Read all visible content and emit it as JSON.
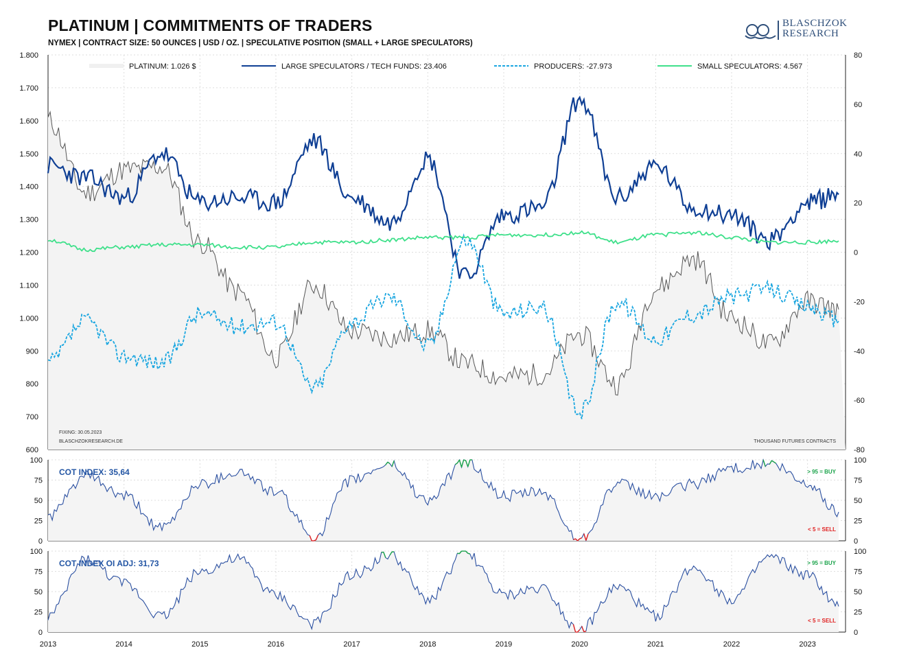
{
  "header": {
    "title": "PLATINUM | COMMITMENTS OF TRADERS",
    "subtitle": "NYMEX  |  CONTRACT SIZE: 50 OUNCES  |  USD / OZ.  |  SPECULATIVE  POSITION (SMALL + LARGE SPECULATORS)",
    "logo_line1": "BLASCHZOK",
    "logo_line2": "RESEARCH"
  },
  "colors": {
    "platinum": "#555555",
    "large_specs": "#0f3f94",
    "producers": "#1aa6e0",
    "small_specs": "#3ee08a",
    "cot_line": "#2a4fa0",
    "buy": "#1aa34a",
    "sell": "#e02020",
    "grid": "#dddddd"
  },
  "chart_data": [
    {
      "type": "line",
      "title": "PLATINUM | COMMITMENTS OF TRADERS",
      "x_ticks": [
        "2013",
        "2014",
        "2015",
        "2016",
        "2017",
        "2018",
        "2019",
        "2020",
        "2021",
        "2022",
        "2023"
      ],
      "left_axis_ticks": [
        "1.800",
        "1.700",
        "1.600",
        "1.500",
        "1.400",
        "1.300",
        "1.200",
        "1.100",
        "1.000",
        "900",
        "800",
        "700",
        "600"
      ],
      "ylim_left": [
        600,
        1800
      ],
      "right_axis_ticks": [
        "80",
        "60",
        "40",
        "20",
        "0",
        "-20",
        "-40",
        "-60",
        "-80"
      ],
      "ylim_right": [
        -80,
        80
      ],
      "right_axis_label": "THOUSAND  FUTURES  CONTRACTS",
      "notes": [
        "FIXING: 30.05.2023",
        "BLASCHZOKRESEARCH.DE"
      ],
      "legend": [
        "PLATINUM: 1.026 $",
        "LARGE SPECULATORS / TECH FUNDS: 23.406",
        "PRODUCERS: -27.973",
        "SMALL SPECULATORS: 4.567"
      ],
      "x": [
        2013.0,
        2013.5,
        2014.0,
        2014.5,
        2015.0,
        2015.5,
        2016.0,
        2016.5,
        2017.0,
        2017.5,
        2018.0,
        2018.5,
        2019.0,
        2019.5,
        2020.0,
        2020.5,
        2021.0,
        2021.5,
        2022.0,
        2022.5,
        2023.0,
        2023.41
      ],
      "series": [
        {
          "name": "PLATINUM",
          "axis": "left",
          "values": [
            1600,
            1380,
            1450,
            1460,
            1230,
            1080,
            880,
            1100,
            960,
            940,
            960,
            860,
            820,
            830,
            950,
            800,
            1090,
            1180,
            1000,
            920,
            1050,
            1026
          ]
        },
        {
          "name": "LARGE SPECULATORS / TECH FUNDS",
          "axis": "right",
          "values": [
            35,
            30,
            22,
            40,
            20,
            22,
            20,
            45,
            22,
            12,
            38,
            -10,
            15,
            18,
            62,
            22,
            35,
            18,
            15,
            5,
            20,
            23.4
          ]
        },
        {
          "name": "PRODUCERS",
          "axis": "right",
          "values": [
            -45,
            -28,
            -42,
            -45,
            -25,
            -30,
            -28,
            -55,
            -28,
            -18,
            -38,
            5,
            -25,
            -22,
            -65,
            -20,
            -35,
            -25,
            -18,
            -15,
            -22,
            -28
          ]
        },
        {
          "name": "SMALL SPECULATORS",
          "axis": "right",
          "values": [
            5,
            1,
            2,
            3,
            3,
            2,
            2,
            4,
            4,
            5,
            6,
            6,
            7,
            7,
            8,
            4,
            7,
            8,
            6,
            4,
            4,
            4.6
          ]
        }
      ]
    },
    {
      "type": "line",
      "label": "COT INDEX: 35,64",
      "ylim": [
        0,
        100
      ],
      "y_ticks": [
        "100",
        "75",
        "50",
        "25",
        "0"
      ],
      "upper_threshold_label": "> 95 = BUY",
      "lower_threshold_label": "< 5 = SELL",
      "x": [
        2013.0,
        2013.5,
        2014.0,
        2014.5,
        2015.0,
        2015.5,
        2016.0,
        2016.5,
        2017.0,
        2017.5,
        2018.0,
        2018.5,
        2019.0,
        2019.5,
        2020.0,
        2020.5,
        2021.0,
        2021.5,
        2022.0,
        2022.5,
        2023.0,
        2023.41
      ],
      "values": [
        30,
        80,
        55,
        15,
        70,
        85,
        60,
        5,
        75,
        95,
        50,
        98,
        55,
        60,
        2,
        70,
        55,
        70,
        90,
        95,
        70,
        35.64
      ]
    },
    {
      "type": "line",
      "label": "COT INDEX OI ADJ: 31,73",
      "ylim": [
        0,
        100
      ],
      "y_ticks": [
        "100",
        "75",
        "50",
        "25",
        "0"
      ],
      "upper_threshold_label": "> 95 = BUY",
      "lower_threshold_label": "< 5 = SELL",
      "x": [
        2013.0,
        2013.5,
        2014.0,
        2014.5,
        2015.0,
        2015.5,
        2016.0,
        2016.5,
        2017.0,
        2017.5,
        2018.0,
        2018.5,
        2019.0,
        2019.5,
        2020.0,
        2020.5,
        2021.0,
        2021.5,
        2022.0,
        2022.5,
        2023.0,
        2023.41
      ],
      "values": [
        20,
        90,
        60,
        20,
        75,
        90,
        45,
        10,
        70,
        95,
        40,
        98,
        45,
        55,
        2,
        55,
        20,
        80,
        40,
        92,
        70,
        31.73
      ]
    }
  ]
}
